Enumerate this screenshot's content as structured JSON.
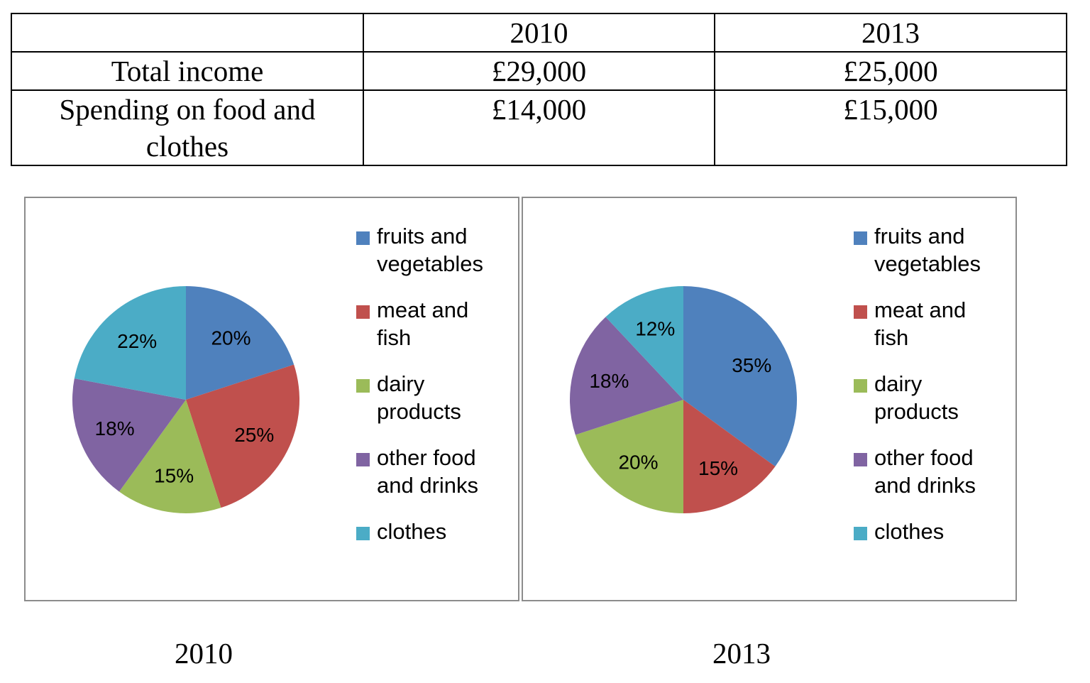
{
  "table": {
    "header": [
      "",
      "2010",
      "2013"
    ],
    "rows": [
      {
        "label": "Total income",
        "values": [
          "£29,000",
          "£25,000"
        ]
      },
      {
        "label": "Spending on food and clothes",
        "values": [
          "£14,000",
          "£15,000"
        ]
      }
    ]
  },
  "colors": {
    "fruits_and_vegetables": "#4f81bd",
    "meat_and_fish": "#c0504d",
    "dairy_products": "#9bbb59",
    "other_food_and_drinks": "#8064a2",
    "clothes": "#4bacc6"
  },
  "chart_data": [
    {
      "type": "pie",
      "caption": "2010",
      "categories": [
        "fruits and vegetables",
        "meat and fish",
        "dairy products",
        "other food and drinks",
        "clothes"
      ],
      "values": [
        20,
        25,
        15,
        18,
        22
      ],
      "labels": [
        "20%",
        "25%",
        "15%",
        "18%",
        "22%"
      ],
      "legend_position": "right"
    },
    {
      "type": "pie",
      "caption": "2013",
      "categories": [
        "fruits and vegetables",
        "meat and fish",
        "dairy products",
        "other food and drinks",
        "clothes"
      ],
      "values": [
        35,
        15,
        20,
        18,
        12
      ],
      "labels": [
        "35%",
        "15%",
        "20%",
        "18%",
        "12%"
      ],
      "legend_position": "right"
    }
  ]
}
